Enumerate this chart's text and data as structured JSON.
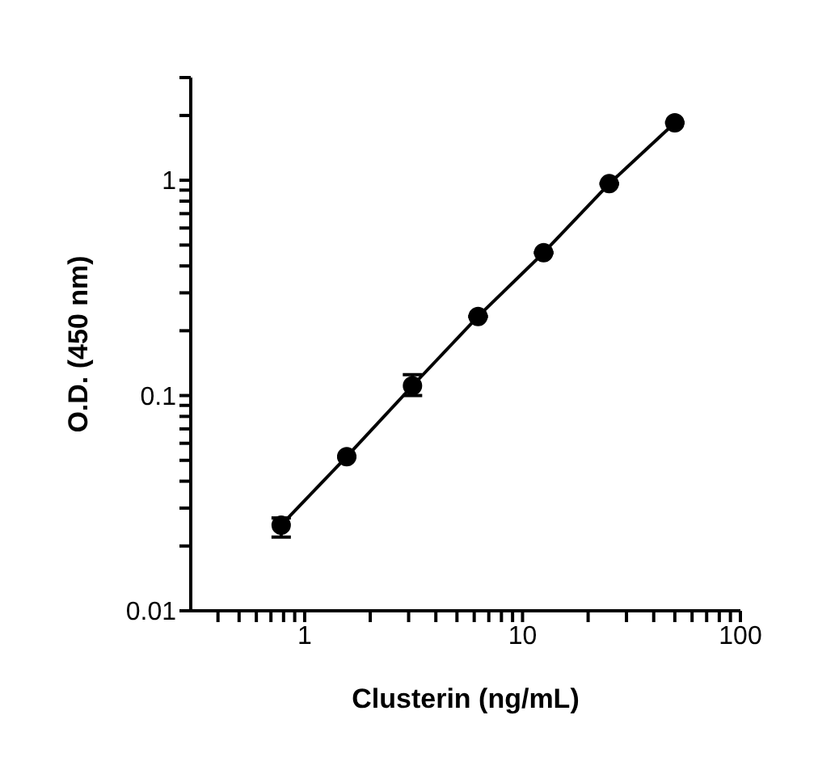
{
  "chart_data": {
    "type": "line",
    "xlabel": "Clusterin (ng/mL)",
    "ylabel": "O.D. (450 nm)",
    "log": "xy",
    "marker": "circle",
    "line_style": "solid",
    "grid": false,
    "legend": false,
    "x": [
      0.78,
      1.56,
      3.125,
      6.25,
      12.5,
      25,
      50
    ],
    "series": [
      {
        "color": "#000000",
        "values": [
          0.025,
          0.052,
          0.111,
          0.233,
          0.461,
          0.964,
          1.85
        ],
        "errors": [
          [
            0.022,
            0.027
          ],
          null,
          [
            0.1,
            0.125
          ],
          null,
          null,
          null,
          null
        ]
      }
    ],
    "xlim": [
      0.3,
      100
    ],
    "xticks": [
      {
        "value": 0.4,
        "label": null
      },
      {
        "value": 0.5,
        "label": null
      },
      {
        "value": 0.6,
        "label": null
      },
      {
        "value": 0.7,
        "label": null
      },
      {
        "value": 0.8,
        "label": null
      },
      {
        "value": 0.9,
        "label": null
      },
      1,
      {
        "value": 2,
        "label": null
      },
      {
        "value": 3,
        "label": null
      },
      {
        "value": 4,
        "label": null
      },
      {
        "value": 5,
        "label": null
      },
      {
        "value": 6,
        "label": null
      },
      {
        "value": 7,
        "label": null
      },
      {
        "value": 8,
        "label": null
      },
      {
        "value": 9,
        "label": null
      },
      10,
      {
        "value": 20,
        "label": null
      },
      {
        "value": 30,
        "label": null
      },
      {
        "value": 40,
        "label": null
      },
      {
        "value": 50,
        "label": null
      },
      {
        "value": 60,
        "label": null
      },
      {
        "value": 70,
        "label": null
      },
      {
        "value": 80,
        "label": null
      },
      {
        "value": 90,
        "label": null
      },
      100
    ],
    "ylim": [
      0.01,
      3
    ],
    "yticks": [
      0.01,
      {
        "value": 0.02,
        "label": null
      },
      {
        "value": 0.03,
        "label": null
      },
      {
        "value": 0.04,
        "label": null
      },
      {
        "value": 0.05,
        "label": null
      },
      {
        "value": 0.06,
        "label": null
      },
      {
        "value": 0.07,
        "label": null
      },
      {
        "value": 0.08,
        "label": null
      },
      {
        "value": 0.09,
        "label": null
      },
      0.1,
      {
        "value": 0.2,
        "label": null
      },
      {
        "value": 0.3,
        "label": null
      },
      {
        "value": 0.4,
        "label": null
      },
      {
        "value": 0.5,
        "label": null
      },
      {
        "value": 0.6,
        "label": null
      },
      {
        "value": 0.7,
        "label": null
      },
      {
        "value": 0.8,
        "label": null
      },
      {
        "value": 0.9,
        "label": null
      },
      1,
      {
        "value": 2,
        "label": null
      },
      {
        "value": 3,
        "label": null
      }
    ]
  }
}
